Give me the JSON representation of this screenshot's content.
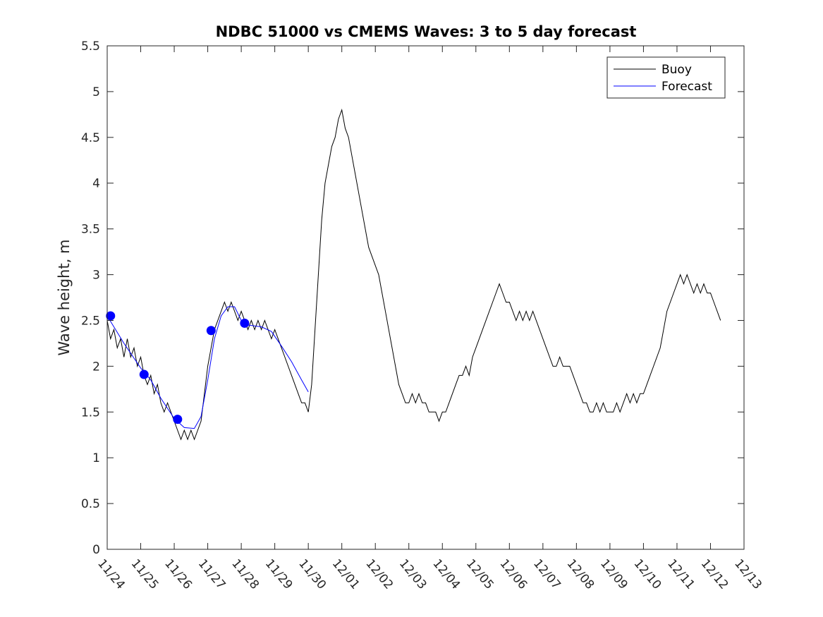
{
  "chart_data": {
    "type": "line",
    "title": "NDBC 51000 vs CMEMS Waves: 3 to 5 day forecast",
    "xlabel": "",
    "ylabel": "Wave height, m",
    "xlim": [
      "11/24",
      "12/13"
    ],
    "ylim": [
      0,
      5.5
    ],
    "x_ticks": [
      "11/24",
      "11/25",
      "11/26",
      "11/27",
      "11/28",
      "11/29",
      "11/30",
      "12/01",
      "12/02",
      "12/03",
      "12/04",
      "12/05",
      "12/06",
      "12/07",
      "12/08",
      "12/09",
      "12/10",
      "12/11",
      "12/12",
      "12/13"
    ],
    "y_ticks": [
      "0",
      "0.5",
      "1",
      "1.5",
      "2",
      "2.5",
      "3",
      "3.5",
      "4",
      "4.5",
      "5",
      "5.5"
    ],
    "grid": false,
    "legend_position": "top-right",
    "x_units": "days after 11/24 00:00",
    "series": [
      {
        "name": "Buoy",
        "color": "#000000",
        "points": [
          [
            0.0,
            2.5
          ],
          [
            0.1,
            2.3
          ],
          [
            0.2,
            2.4
          ],
          [
            0.3,
            2.2
          ],
          [
            0.4,
            2.3
          ],
          [
            0.5,
            2.1
          ],
          [
            0.6,
            2.3
          ],
          [
            0.7,
            2.1
          ],
          [
            0.8,
            2.2
          ],
          [
            0.9,
            2.0
          ],
          [
            1.0,
            2.1
          ],
          [
            1.1,
            1.9
          ],
          [
            1.2,
            1.8
          ],
          [
            1.3,
            1.9
          ],
          [
            1.4,
            1.7
          ],
          [
            1.5,
            1.8
          ],
          [
            1.6,
            1.6
          ],
          [
            1.7,
            1.5
          ],
          [
            1.8,
            1.6
          ],
          [
            1.9,
            1.5
          ],
          [
            2.0,
            1.4
          ],
          [
            2.1,
            1.3
          ],
          [
            2.2,
            1.2
          ],
          [
            2.3,
            1.3
          ],
          [
            2.4,
            1.2
          ],
          [
            2.5,
            1.3
          ],
          [
            2.6,
            1.2
          ],
          [
            2.7,
            1.3
          ],
          [
            2.8,
            1.4
          ],
          [
            2.9,
            1.7
          ],
          [
            3.0,
            2.0
          ],
          [
            3.1,
            2.2
          ],
          [
            3.2,
            2.4
          ],
          [
            3.3,
            2.5
          ],
          [
            3.4,
            2.6
          ],
          [
            3.5,
            2.7
          ],
          [
            3.6,
            2.6
          ],
          [
            3.7,
            2.7
          ],
          [
            3.8,
            2.6
          ],
          [
            3.9,
            2.5
          ],
          [
            4.0,
            2.6
          ],
          [
            4.1,
            2.5
          ],
          [
            4.2,
            2.4
          ],
          [
            4.3,
            2.5
          ],
          [
            4.4,
            2.4
          ],
          [
            4.5,
            2.5
          ],
          [
            4.6,
            2.4
          ],
          [
            4.7,
            2.5
          ],
          [
            4.8,
            2.4
          ],
          [
            4.9,
            2.3
          ],
          [
            5.0,
            2.4
          ],
          [
            5.1,
            2.3
          ],
          [
            5.2,
            2.2
          ],
          [
            5.3,
            2.1
          ],
          [
            5.4,
            2.0
          ],
          [
            5.5,
            1.9
          ],
          [
            5.6,
            1.8
          ],
          [
            5.7,
            1.7
          ],
          [
            5.8,
            1.6
          ],
          [
            5.9,
            1.6
          ],
          [
            6.0,
            1.5
          ],
          [
            6.1,
            1.8
          ],
          [
            6.2,
            2.4
          ],
          [
            6.3,
            3.0
          ],
          [
            6.4,
            3.6
          ],
          [
            6.5,
            4.0
          ],
          [
            6.6,
            4.2
          ],
          [
            6.7,
            4.4
          ],
          [
            6.8,
            4.5
          ],
          [
            6.9,
            4.7
          ],
          [
            7.0,
            4.8
          ],
          [
            7.1,
            4.6
          ],
          [
            7.2,
            4.5
          ],
          [
            7.3,
            4.3
          ],
          [
            7.4,
            4.1
          ],
          [
            7.5,
            3.9
          ],
          [
            7.6,
            3.7
          ],
          [
            7.7,
            3.5
          ],
          [
            7.8,
            3.3
          ],
          [
            7.9,
            3.2
          ],
          [
            8.0,
            3.1
          ],
          [
            8.1,
            3.0
          ],
          [
            8.2,
            2.8
          ],
          [
            8.3,
            2.6
          ],
          [
            8.4,
            2.4
          ],
          [
            8.5,
            2.2
          ],
          [
            8.6,
            2.0
          ],
          [
            8.7,
            1.8
          ],
          [
            8.8,
            1.7
          ],
          [
            8.9,
            1.6
          ],
          [
            9.0,
            1.6
          ],
          [
            9.1,
            1.7
          ],
          [
            9.2,
            1.6
          ],
          [
            9.3,
            1.7
          ],
          [
            9.4,
            1.6
          ],
          [
            9.5,
            1.6
          ],
          [
            9.6,
            1.5
          ],
          [
            9.7,
            1.5
          ],
          [
            9.8,
            1.5
          ],
          [
            9.9,
            1.4
          ],
          [
            10.0,
            1.5
          ],
          [
            10.1,
            1.5
          ],
          [
            10.2,
            1.6
          ],
          [
            10.3,
            1.7
          ],
          [
            10.4,
            1.8
          ],
          [
            10.5,
            1.9
          ],
          [
            10.6,
            1.9
          ],
          [
            10.7,
            2.0
          ],
          [
            10.8,
            1.9
          ],
          [
            10.9,
            2.1
          ],
          [
            11.0,
            2.2
          ],
          [
            11.1,
            2.3
          ],
          [
            11.2,
            2.4
          ],
          [
            11.3,
            2.5
          ],
          [
            11.4,
            2.6
          ],
          [
            11.5,
            2.7
          ],
          [
            11.6,
            2.8
          ],
          [
            11.7,
            2.9
          ],
          [
            11.8,
            2.8
          ],
          [
            11.9,
            2.7
          ],
          [
            12.0,
            2.7
          ],
          [
            12.1,
            2.6
          ],
          [
            12.2,
            2.5
          ],
          [
            12.3,
            2.6
          ],
          [
            12.4,
            2.5
          ],
          [
            12.5,
            2.6
          ],
          [
            12.6,
            2.5
          ],
          [
            12.7,
            2.6
          ],
          [
            12.8,
            2.5
          ],
          [
            12.9,
            2.4
          ],
          [
            13.0,
            2.3
          ],
          [
            13.1,
            2.2
          ],
          [
            13.2,
            2.1
          ],
          [
            13.3,
            2.0
          ],
          [
            13.4,
            2.0
          ],
          [
            13.5,
            2.1
          ],
          [
            13.6,
            2.0
          ],
          [
            13.7,
            2.0
          ],
          [
            13.8,
            2.0
          ],
          [
            13.9,
            1.9
          ],
          [
            14.0,
            1.8
          ],
          [
            14.1,
            1.7
          ],
          [
            14.2,
            1.6
          ],
          [
            14.3,
            1.6
          ],
          [
            14.4,
            1.5
          ],
          [
            14.5,
            1.5
          ],
          [
            14.6,
            1.6
          ],
          [
            14.7,
            1.5
          ],
          [
            14.8,
            1.6
          ],
          [
            14.9,
            1.5
          ],
          [
            15.0,
            1.5
          ],
          [
            15.1,
            1.5
          ],
          [
            15.2,
            1.6
          ],
          [
            15.3,
            1.5
          ],
          [
            15.4,
            1.6
          ],
          [
            15.5,
            1.7
          ],
          [
            15.6,
            1.6
          ],
          [
            15.7,
            1.7
          ],
          [
            15.8,
            1.6
          ],
          [
            15.9,
            1.7
          ],
          [
            16.0,
            1.7
          ],
          [
            16.1,
            1.8
          ],
          [
            16.2,
            1.9
          ],
          [
            16.3,
            2.0
          ],
          [
            16.4,
            2.1
          ],
          [
            16.5,
            2.2
          ],
          [
            16.6,
            2.4
          ],
          [
            16.7,
            2.6
          ],
          [
            16.8,
            2.7
          ],
          [
            16.9,
            2.8
          ],
          [
            17.0,
            2.9
          ],
          [
            17.1,
            3.0
          ],
          [
            17.2,
            2.9
          ],
          [
            17.3,
            3.0
          ],
          [
            17.4,
            2.9
          ],
          [
            17.5,
            2.8
          ],
          [
            17.6,
            2.9
          ],
          [
            17.7,
            2.8
          ],
          [
            17.8,
            2.9
          ],
          [
            17.9,
            2.8
          ],
          [
            18.0,
            2.8
          ],
          [
            18.1,
            2.7
          ],
          [
            18.2,
            2.6
          ],
          [
            18.3,
            2.5
          ]
        ]
      },
      {
        "name": "Forecast",
        "color": "#0000ff",
        "points": [
          [
            0.0,
            2.55
          ],
          [
            0.5,
            2.25
          ],
          [
            1.0,
            1.98
          ],
          [
            1.3,
            1.85
          ],
          [
            1.6,
            1.65
          ],
          [
            2.0,
            1.43
          ],
          [
            2.3,
            1.33
          ],
          [
            2.6,
            1.32
          ],
          [
            2.8,
            1.45
          ],
          [
            3.0,
            1.85
          ],
          [
            3.2,
            2.3
          ],
          [
            3.4,
            2.55
          ],
          [
            3.6,
            2.65
          ],
          [
            3.8,
            2.65
          ],
          [
            4.0,
            2.5
          ],
          [
            4.2,
            2.45
          ],
          [
            4.6,
            2.43
          ],
          [
            4.9,
            2.38
          ],
          [
            5.2,
            2.22
          ],
          [
            5.5,
            2.05
          ],
          [
            5.8,
            1.85
          ],
          [
            6.0,
            1.72
          ]
        ]
      }
    ],
    "forecast_init_markers": [
      [
        0.1,
        2.55
      ],
      [
        1.1,
        1.91
      ],
      [
        2.1,
        1.42
      ],
      [
        3.1,
        2.39
      ],
      [
        4.1,
        2.47
      ]
    ]
  },
  "legend": {
    "items": [
      {
        "label": "Buoy",
        "color": "#000000"
      },
      {
        "label": "Forecast",
        "color": "#0000ff"
      }
    ]
  }
}
